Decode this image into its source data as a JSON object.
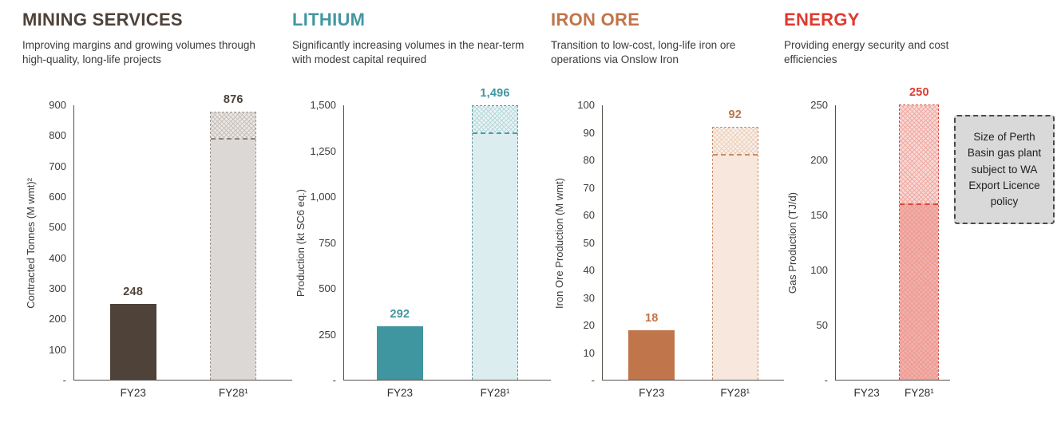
{
  "sections": [
    {
      "title": "MINING SERVICES",
      "subtitle": "Improving margins and growing volumes through high-quality, long-life projects",
      "accent": "#4e4239"
    },
    {
      "title": "LITHIUM",
      "subtitle": "Significantly increasing volumes in the near-term with modest capital required",
      "accent": "#4397a2"
    },
    {
      "title": "IRON ORE",
      "subtitle": "Transition to low-cost, long-life iron ore operations via Onslow Iron",
      "accent": "#c0754a"
    },
    {
      "title": "ENERGY",
      "subtitle": "Providing energy security and cost efficiencies",
      "accent": "#e03a2f"
    }
  ],
  "note_box": {
    "text": "Size of Perth Basin gas plant subject to WA Export Licence policy",
    "background": "#d9d9d9",
    "border_color": "#4a4a4a"
  },
  "chart_data": [
    {
      "type": "bar",
      "title": "MINING SERVICES",
      "ylabel": "Contracted Tonnes (M wmt)²",
      "ylim": [
        0,
        900
      ],
      "yticks": [
        [
          0,
          "-"
        ],
        [
          100,
          "100"
        ],
        [
          200,
          "200"
        ],
        [
          300,
          "300"
        ],
        [
          400,
          "400"
        ],
        [
          500,
          "500"
        ],
        [
          600,
          "600"
        ],
        [
          700,
          "700"
        ],
        [
          800,
          "800"
        ],
        [
          900,
          "900"
        ]
      ],
      "categories": [
        "FY23",
        "FY28¹"
      ],
      "values": [
        248,
        876
      ],
      "value_labels": [
        "248",
        "876"
      ],
      "fy28_dashed_level": 790,
      "colors": {
        "bar": "#4e4239",
        "value_label": "#4e4239",
        "fy28_border": "#9a918b",
        "fy28_lower": "#dcd8d5",
        "fy28_upper": "#eae7e4",
        "fy28_hatch": "#c6c0ba",
        "divider": "#8b837c"
      }
    },
    {
      "type": "bar",
      "title": "LITHIUM",
      "ylabel": "Production (kt SC6 eq.)",
      "ylim": [
        0,
        1500
      ],
      "yticks": [
        [
          0,
          "-"
        ],
        [
          250,
          "250"
        ],
        [
          500,
          "500"
        ],
        [
          750,
          "750"
        ],
        [
          1000,
          "1,000"
        ],
        [
          1250,
          "1,250"
        ],
        [
          1500,
          "1,500"
        ]
      ],
      "categories": [
        "FY23",
        "FY28¹"
      ],
      "values": [
        292,
        1496
      ],
      "value_labels": [
        "292",
        "1,496"
      ],
      "fy28_dashed_level": 1350,
      "colors": {
        "bar": "#3f96a1",
        "value_label": "#3f96a1",
        "fy28_border": "#4d9aa5",
        "fy28_lower": "#dcedef",
        "fy28_upper": "#eaf4f5",
        "fy28_hatch": "#b7d8dc",
        "divider": "#4d9aa5"
      }
    },
    {
      "type": "bar",
      "title": "IRON ORE",
      "ylabel": "Iron Ore Production (M wmt)",
      "ylim": [
        0,
        100
      ],
      "yticks": [
        [
          0,
          "-"
        ],
        [
          10,
          "10"
        ],
        [
          20,
          "20"
        ],
        [
          30,
          "30"
        ],
        [
          40,
          "40"
        ],
        [
          50,
          "50"
        ],
        [
          60,
          "60"
        ],
        [
          70,
          "70"
        ],
        [
          80,
          "80"
        ],
        [
          90,
          "90"
        ],
        [
          100,
          "100"
        ]
      ],
      "categories": [
        "FY23",
        "FY28¹"
      ],
      "values": [
        18,
        92
      ],
      "value_labels": [
        "18",
        "92"
      ],
      "fy28_dashed_level": 82,
      "colors": {
        "bar": "#c0754a",
        "value_label": "#c0754a",
        "fy28_border": "#c98c64",
        "fy28_lower": "#f8e7dc",
        "fy28_upper": "#fbf0e9",
        "fy28_hatch": "#ead0bd",
        "divider": "#c98c64"
      }
    },
    {
      "type": "bar",
      "title": "ENERGY",
      "ylabel": "Gas Production (TJ/d)",
      "ylim": [
        0,
        250
      ],
      "yticks": [
        [
          0,
          "-"
        ],
        [
          50,
          "50"
        ],
        [
          100,
          "100"
        ],
        [
          150,
          "150"
        ],
        [
          200,
          "200"
        ],
        [
          250,
          "250"
        ]
      ],
      "categories": [
        "FY23",
        "FY28¹"
      ],
      "values": [
        0,
        250
      ],
      "value_labels": [
        "",
        "250"
      ],
      "fy28_dashed_level": 160,
      "colors": {
        "bar": "#e03a2f",
        "value_label": "#e03a2f",
        "fy28_border": "#d9473c",
        "fy28_lower": "#f3afa9",
        "fy28_lower_hatch": "#eb9b94",
        "fy28_upper": "#f9d9d5",
        "fy28_hatch": "#efa9a2",
        "divider": "#d9473c"
      }
    }
  ]
}
